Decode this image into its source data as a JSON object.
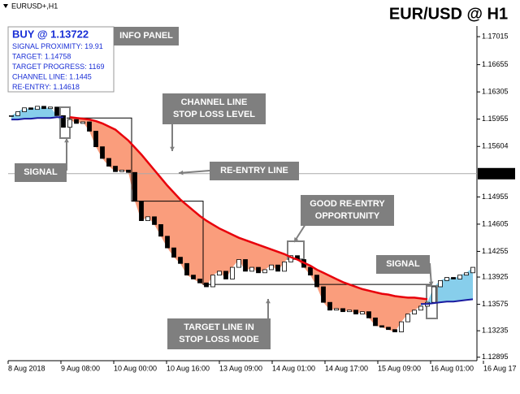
{
  "chart_data": {
    "type": "candlestick",
    "symbol": "EURUSD+,H1",
    "title": "EUR/USD @ H1",
    "info_panel": [
      "BUY @ 1.13722",
      "SIGNAL PROXIMITY: 19.91",
      "TARGET: 1.14758",
      "TARGET PROGRESS: 1169",
      "CHANNEL LINE: 1.1445",
      "RE-ENTRY: 1.14618"
    ],
    "annotations": [
      [
        "INFO PANEL"
      ],
      [
        "CHANNEL LINE",
        "STOP LOSS LEVEL"
      ],
      [
        "RE-ENTRY LINE"
      ],
      [
        "GOOD RE-ENTRY",
        "OPPORTUNITY"
      ],
      [
        "SIGNAL"
      ],
      [
        "SIGNAL"
      ],
      [
        "TARGET LINE IN",
        "STOP LOSS MODE"
      ]
    ],
    "categories": [
      "8 Aug 2018",
      "9 Aug 08:00",
      "10 Aug 00:00",
      "10 Aug 16:00",
      "13 Aug 09:00",
      "14 Aug 01:00",
      "14 Aug 17:00",
      "15 Aug 09:00",
      "16 Aug 01:00",
      "16 Aug 17"
    ],
    "ylim": [
      1.1285,
      1.1734
    ],
    "yticks": [
      1.17015,
      1.16655,
      1.16305,
      1.15955,
      1.15604,
      1.14955,
      1.14605,
      1.14255,
      1.13925,
      1.13575,
      1.13235,
      1.12895
    ],
    "current_price": 1.15254,
    "close": [
      1.16,
      1.1605,
      1.161,
      1.1608,
      1.1612,
      1.1609,
      1.1611,
      1.16,
      1.1585,
      1.1595,
      1.159,
      1.1592,
      1.158,
      1.156,
      1.1545,
      1.1535,
      1.1528,
      1.153,
      1.1527,
      1.149,
      1.1465,
      1.147,
      1.146,
      1.1445,
      1.143,
      1.1418,
      1.141,
      1.1395,
      1.139,
      1.1385,
      1.138,
      1.1395,
      1.14,
      1.139,
      1.1405,
      1.1415,
      1.14,
      1.1405,
      1.1398,
      1.1402,
      1.1408,
      1.14,
      1.1412,
      1.142,
      1.1415,
      1.1405,
      1.1395,
      1.138,
      1.136,
      1.135,
      1.1352,
      1.1348,
      1.135,
      1.1345,
      1.1348,
      1.134,
      1.133,
      1.1328,
      1.1325,
      1.1322,
      1.1335,
      1.1345,
      1.135,
      1.1355,
      1.136,
      1.138,
      1.1388,
      1.1392,
      1.139,
      1.1395,
      1.1398,
      1.1405
    ],
    "stop_loss": [
      null,
      null,
      null,
      null,
      null,
      null,
      null,
      null,
      null,
      1.1598,
      1.1597,
      1.1596,
      1.1595,
      1.1593,
      1.159,
      1.1586,
      1.1582,
      1.1575,
      1.1568,
      1.1559,
      1.155,
      1.154,
      1.153,
      1.152,
      1.151,
      1.1501,
      1.1492,
      1.1485,
      1.1478,
      1.1471,
      1.1465,
      1.146,
      1.1455,
      1.1451,
      1.1447,
      1.1443,
      1.144,
      1.1437,
      1.1434,
      1.1431,
      1.1428,
      1.1425,
      1.1422,
      1.1418,
      1.1415,
      1.1411,
      1.1407,
      1.1402,
      1.1398,
      1.1394,
      1.139,
      1.1386,
      1.1383,
      1.138,
      1.1377,
      1.1375,
      1.1373,
      1.1371,
      1.137,
      1.1368,
      1.1367,
      1.1366,
      1.1366,
      1.1365,
      1.1364,
      null,
      null,
      null,
      null,
      null,
      null,
      null
    ],
    "target_line": [
      null,
      null,
      null,
      null,
      null,
      null,
      null,
      null,
      null,
      1.1597,
      1.1597,
      1.1597,
      1.1597,
      1.1597,
      1.1597,
      1.1597,
      1.1597,
      1.1597,
      1.1597,
      1.149,
      1.149,
      1.149,
      1.149,
      1.149,
      1.149,
      1.149,
      1.149,
      1.149,
      1.149,
      1.149,
      1.1383,
      1.1383,
      1.1383,
      1.1383,
      1.1383,
      1.1383,
      1.1383,
      1.1383,
      1.1383,
      1.1383,
      1.1383,
      1.1383,
      1.1383,
      1.1383,
      1.1383,
      1.1383,
      1.1383,
      1.1383,
      1.1383,
      1.1383,
      1.1383,
      1.1383,
      1.1383,
      1.1383,
      1.1383,
      1.1383,
      1.1383,
      1.1383,
      1.1383,
      1.1383,
      1.1383,
      1.1383,
      1.1383,
      1.1383,
      1.1383,
      null,
      null,
      null,
      null,
      null,
      null,
      null
    ],
    "trail": [
      1.1595,
      1.1595,
      1.1596,
      1.1596,
      1.1597,
      1.1597,
      1.1597,
      1.1598,
      1.1598,
      null,
      null,
      null,
      null,
      null,
      null,
      null,
      null,
      null,
      null,
      null,
      null,
      null,
      null,
      null,
      null,
      null,
      null,
      null,
      null,
      null,
      null,
      null,
      null,
      null,
      null,
      null,
      null,
      null,
      null,
      null,
      null,
      null,
      null,
      null,
      null,
      null,
      null,
      null,
      null,
      null,
      null,
      null,
      null,
      null,
      null,
      null,
      null,
      null,
      null,
      null,
      null,
      null,
      null,
      1.1358,
      1.1358,
      1.1359,
      1.136,
      1.1361,
      1.1361,
      1.1362,
      1.1363,
      1.1364
    ],
    "colors": {
      "stop_loss": "#e8000b",
      "area_down": "#fa9d7c",
      "area_up": "#87ceeb",
      "trail": "#1a1aa0",
      "annotation": "#7f7f7f"
    }
  }
}
